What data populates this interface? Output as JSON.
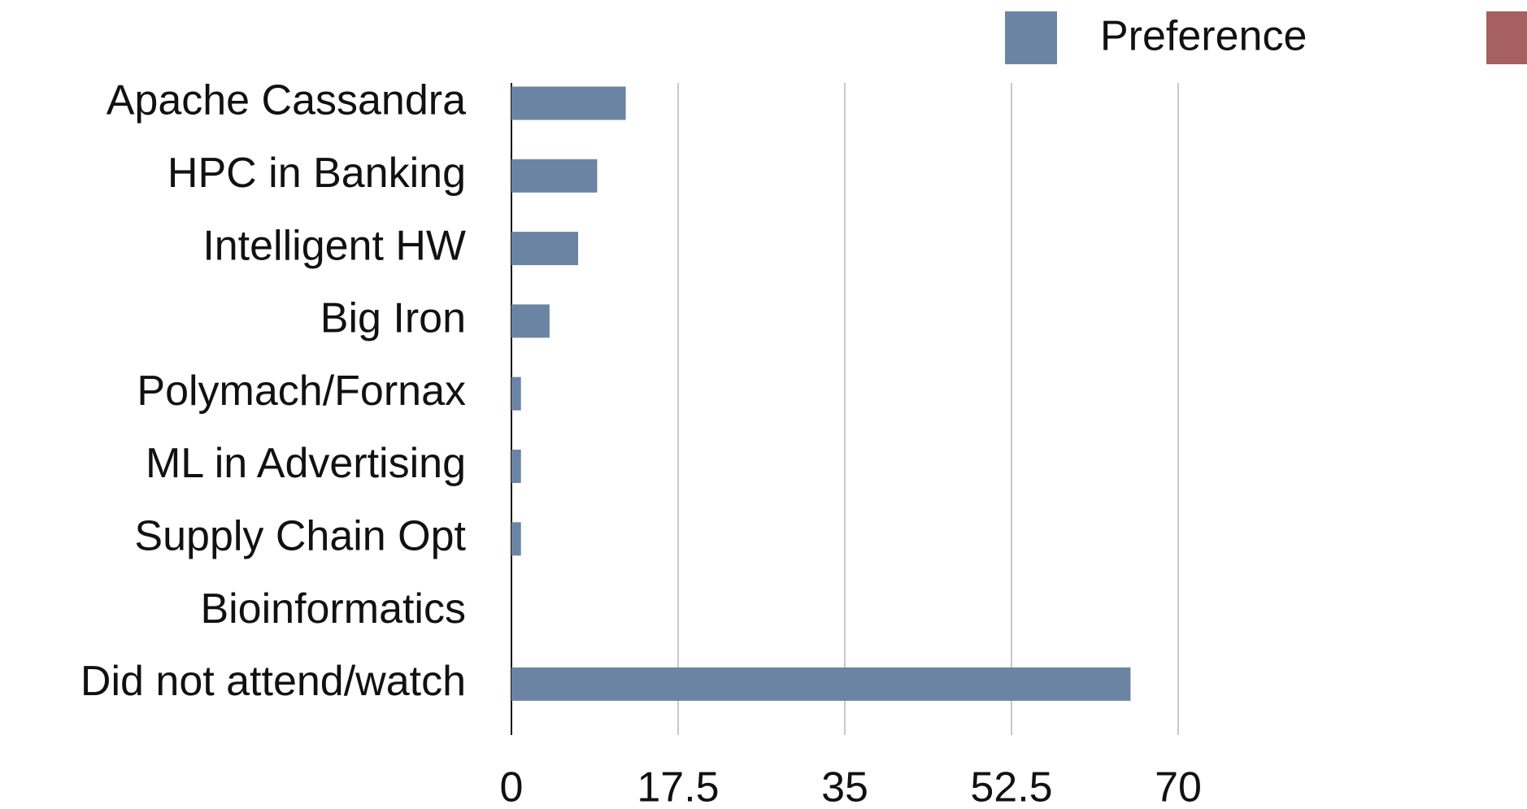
{
  "chart_data": {
    "type": "bar",
    "orientation": "horizontal",
    "categories": [
      "Apache Cassandra",
      "HPC in Banking",
      "Intelligent HW",
      "Big Iron",
      "Polymach/Fornax",
      "ML in Advertising",
      "Supply Chain Opt",
      "Bioinformatics",
      "Did not attend/watch"
    ],
    "series": [
      {
        "name": "Preference",
        "color": "#6b84a3",
        "values": [
          12,
          9,
          7,
          4,
          1,
          1,
          1,
          0,
          65
        ]
      },
      {
        "name": null,
        "color": "#a5605f",
        "values": [
          null,
          null,
          null,
          null,
          null,
          null,
          null,
          null,
          null
        ]
      }
    ],
    "xlim": [
      0,
      70
    ],
    "xticks": [
      0,
      17.5,
      35,
      52.5,
      70
    ],
    "grid": true,
    "legend": "top"
  }
}
